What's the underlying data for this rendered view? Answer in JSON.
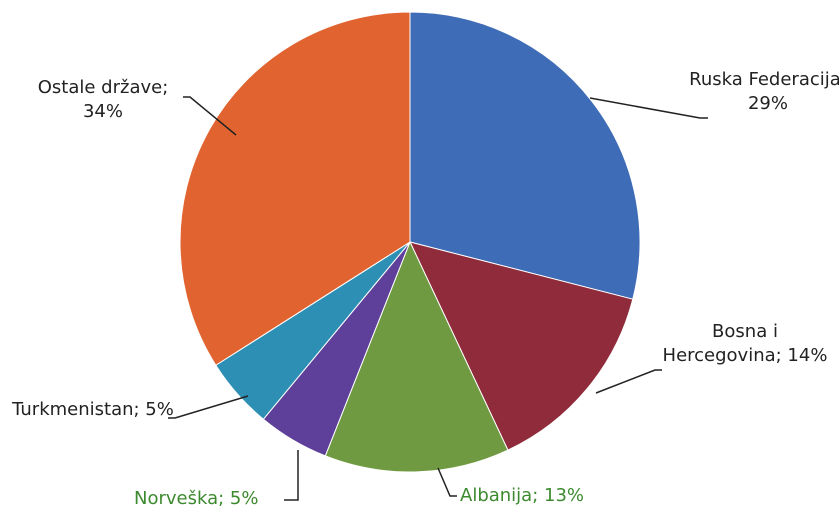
{
  "chart_data": {
    "type": "pie",
    "values": [
      29,
      14,
      13,
      5,
      5,
      34
    ],
    "value_labels": [
      "Ruska Federacija; 29%",
      "Bosna i Hercegovina; 14%",
      "Albanija; 13%",
      "Norveška; 5%",
      "Turkmenistan; 5%",
      "Ostale države; 34%"
    ],
    "colors": [
      "#3f6cb6",
      "#8f2b3b",
      "#6f9a41",
      "#5e409a",
      "#2e8fb4",
      "#e1632f"
    ]
  }
}
